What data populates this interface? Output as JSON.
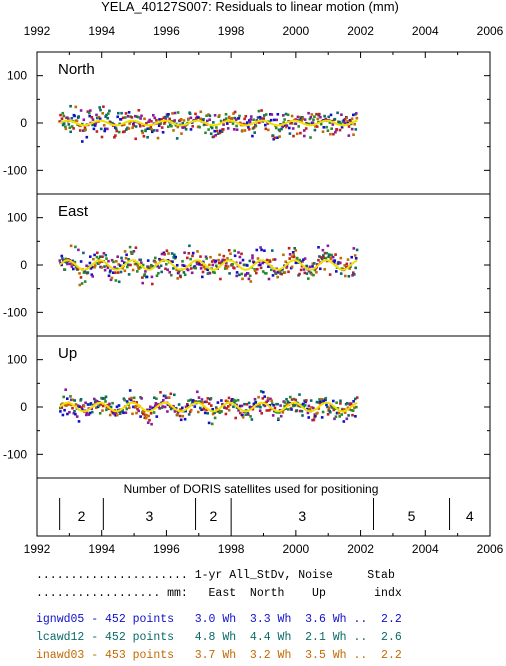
{
  "title": "YELA_40127S007: Residuals to linear motion (mm)",
  "colors": {
    "ignwd05": "#1010c8",
    "lcawd12": "#0a6a6a",
    "inawd03": "#c06a00",
    "smooth": "#f0e000",
    "points_red": "#c02020",
    "points_purple": "#8a1aa0",
    "points_green": "#2a8a2a"
  },
  "chart_data": {
    "type": "scatter",
    "x_axis": {
      "range": [
        1992,
        2006
      ],
      "ticks": [
        "1992",
        "1994",
        "1996",
        "1998",
        "2000",
        "2002",
        "2004",
        "2006"
      ]
    },
    "panels": [
      {
        "name": "North",
        "ylim": [
          -150,
          150
        ],
        "yticks": [
          "100",
          "0",
          "-100"
        ],
        "data_span": [
          1992.7,
          2001.9
        ],
        "noise_amp": 28,
        "wave_amp": 5
      },
      {
        "name": "East",
        "ylim": [
          -150,
          150
        ],
        "yticks": [
          "100",
          "0",
          "-100"
        ],
        "data_span": [
          1992.7,
          2001.9
        ],
        "noise_amp": 32,
        "wave_amp": 10
      },
      {
        "name": "Up",
        "ylim": [
          -150,
          150
        ],
        "yticks": [
          "100",
          "0",
          "-100"
        ],
        "data_span": [
          1992.7,
          2001.9
        ],
        "noise_amp": 27,
        "wave_amp": 9
      }
    ],
    "satellites": {
      "label": "Number of DORIS satellites used for positioning",
      "segments": [
        {
          "start": 1992.7,
          "end": 1994.05,
          "count": "2"
        },
        {
          "start": 1994.05,
          "end": 1996.9,
          "count": "3"
        },
        {
          "start": 1996.9,
          "end": 1998.0,
          "count": "2"
        },
        {
          "start": 1998.0,
          "end": 2002.4,
          "count": "3"
        },
        {
          "start": 2002.4,
          "end": 2004.75,
          "count": "5"
        },
        {
          "start": 2004.75,
          "end": 2006.0,
          "count": "4"
        }
      ]
    }
  },
  "stats": {
    "header1": "...................... 1-yr All_StDv, Noise     Stab",
    "header2": ".................. mm:   East  North    Up       indx",
    "rows": [
      {
        "solution": "ignwd05",
        "text": "ignwd05 - 452 points   3.0 Wh  3.3 Wh  3.6 Wh ..  2.2"
      },
      {
        "solution": "lcawd12",
        "text": "lcawd12 - 452 points   4.8 Wh  4.4 Wh  2.1 Wh ..  2.6"
      },
      {
        "solution": "inawd03",
        "text": "inawd03 - 453 points   3.7 Wh  3.2 Wh  3.5 Wh ..  2.2"
      }
    ]
  }
}
